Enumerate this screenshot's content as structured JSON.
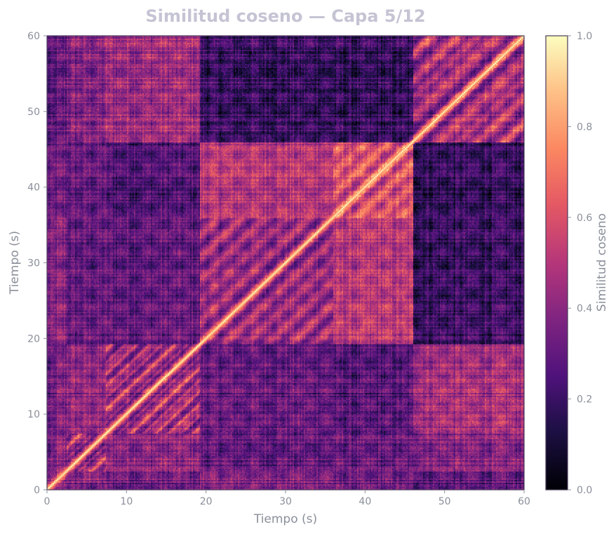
{
  "chart_data": {
    "type": "heatmap",
    "title": "Similitud coseno — Capa 5/12",
    "xlabel": "Tiempo (s)",
    "ylabel": "Tiempo (s)",
    "xlim": [
      0,
      60
    ],
    "ylim": [
      0,
      60
    ],
    "xticks": [
      "0",
      "10",
      "20",
      "30",
      "40",
      "50",
      "60"
    ],
    "yticks": [
      "0",
      "10",
      "20",
      "30",
      "40",
      "50",
      "60"
    ],
    "colormap": "magma",
    "colorbar": {
      "label": "Similitud coseno",
      "range": [
        0.0,
        1.0
      ],
      "ticks": [
        "0.0",
        "0.2",
        "0.4",
        "0.6",
        "0.8",
        "1.0"
      ]
    },
    "segments_s": [
      {
        "start": 0,
        "end": 1,
        "level": 0.55
      },
      {
        "start": 1,
        "end": 2.5,
        "level": 0.6
      },
      {
        "start": 2.5,
        "end": 7.5,
        "level": 0.45
      },
      {
        "start": 7.5,
        "end": 19.2,
        "level": 0.5
      },
      {
        "start": 19.2,
        "end": 36,
        "level": 0.55
      },
      {
        "start": 36,
        "end": 46,
        "level": 0.65
      },
      {
        "start": 46,
        "end": 60,
        "level": 0.6
      }
    ],
    "block_similarity": [
      [
        1.0,
        0.4,
        0.3,
        0.28,
        0.35,
        0.3,
        0.25
      ],
      [
        0.4,
        1.0,
        0.4,
        0.35,
        0.38,
        0.32,
        0.3
      ],
      [
        0.3,
        0.4,
        1.0,
        0.4,
        0.3,
        0.3,
        0.38
      ],
      [
        0.28,
        0.35,
        0.4,
        1.0,
        0.3,
        0.25,
        0.45
      ],
      [
        0.35,
        0.38,
        0.3,
        0.3,
        1.0,
        0.5,
        0.2
      ],
      [
        0.3,
        0.32,
        0.3,
        0.25,
        0.5,
        1.0,
        0.18
      ],
      [
        0.25,
        0.3,
        0.38,
        0.45,
        0.2,
        0.18,
        1.0
      ]
    ],
    "diagonal_value": 1.0
  }
}
